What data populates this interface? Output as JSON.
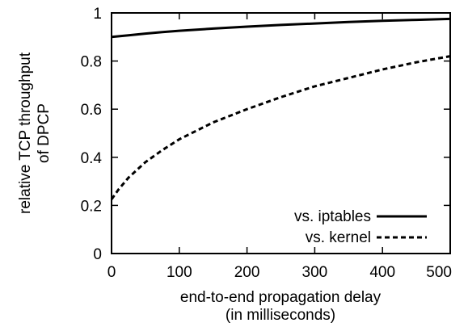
{
  "chart_data": {
    "type": "line",
    "title": "",
    "xlabel": [
      "end-to-end propagation delay",
      "(in milliseconds)"
    ],
    "ylabel": [
      "relative TCP throughput",
      "of DPCP"
    ],
    "xlim": [
      0,
      500
    ],
    "ylim": [
      0,
      1
    ],
    "xticks": [
      0,
      100,
      200,
      300,
      400,
      500
    ],
    "yticks": [
      0,
      0.2,
      0.4,
      0.6,
      0.8,
      1
    ],
    "ytick_labels": [
      "0",
      "0.2",
      "0.4",
      "0.6",
      "0.8",
      "1"
    ],
    "grid": false,
    "legend_position": "bottom-right",
    "series": [
      {
        "name": "vs. iptables",
        "style": "solid",
        "color": "#000000",
        "points": [
          [
            0,
            0.9
          ],
          [
            25,
            0.907
          ],
          [
            50,
            0.914
          ],
          [
            75,
            0.92
          ],
          [
            100,
            0.926
          ],
          [
            150,
            0.935
          ],
          [
            200,
            0.943
          ],
          [
            250,
            0.95
          ],
          [
            300,
            0.956
          ],
          [
            350,
            0.962
          ],
          [
            400,
            0.967
          ],
          [
            450,
            0.971
          ],
          [
            500,
            0.975
          ]
        ]
      },
      {
        "name": "vs. kernel",
        "style": "dashed",
        "color": "#000000",
        "points": [
          [
            0,
            0.225
          ],
          [
            10,
            0.265
          ],
          [
            25,
            0.315
          ],
          [
            50,
            0.38
          ],
          [
            75,
            0.43
          ],
          [
            100,
            0.475
          ],
          [
            150,
            0.545
          ],
          [
            200,
            0.6
          ],
          [
            250,
            0.65
          ],
          [
            300,
            0.695
          ],
          [
            350,
            0.73
          ],
          [
            400,
            0.765
          ],
          [
            450,
            0.795
          ],
          [
            500,
            0.82
          ]
        ]
      }
    ]
  }
}
